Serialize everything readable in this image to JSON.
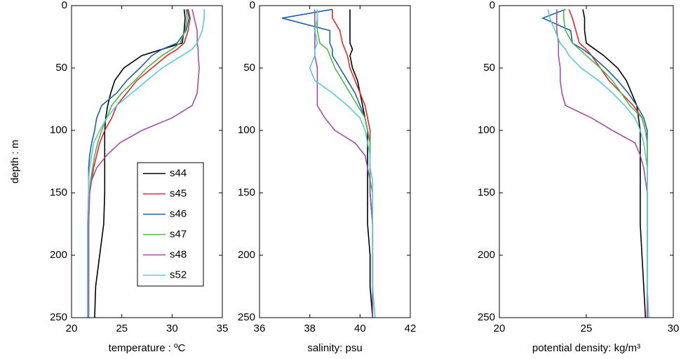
{
  "chart_data": [
    {
      "type": "line",
      "xlabel": "temperature : ºC",
      "ylabel": "depth : m",
      "xlim": [
        20,
        35
      ],
      "xticks": [
        20,
        25,
        30,
        35
      ],
      "ylim": [
        0,
        250
      ],
      "yticks": [
        0,
        50,
        100,
        150,
        200,
        250
      ],
      "yreverse": true,
      "legend": "lower right",
      "y": [
        3,
        10,
        20,
        30,
        35,
        40,
        50,
        60,
        70,
        80,
        90,
        100,
        110,
        120,
        130,
        140,
        150,
        175,
        200,
        225,
        250
      ],
      "series": [
        {
          "name": "s44",
          "color": "#000000",
          "values": [
            31.2,
            31.3,
            31.2,
            31,
            29,
            27,
            25.2,
            24.3,
            23.9,
            23.6,
            23.4,
            23.3,
            23.3,
            23.3,
            23.3,
            23.3,
            23.3,
            23.2,
            22.8,
            22.4,
            22.3
          ]
        },
        {
          "name": "s45",
          "color": "#e8262a",
          "values": [
            31.6,
            31.8,
            31.6,
            31.2,
            30.5,
            29.5,
            28,
            26.5,
            25.5,
            24.5,
            24,
            23.3,
            22.8,
            22.5,
            22.2,
            22,
            21.8,
            21.7,
            21.7,
            21.7,
            21.7
          ]
        },
        {
          "name": "s46",
          "color": "#1f5fa8",
          "values": [
            31.5,
            31.7,
            31.4,
            30.5,
            29,
            28,
            26.8,
            25.5,
            24.5,
            23,
            22.5,
            22.3,
            22,
            21.8,
            21.7,
            21.7,
            21.7,
            21.6,
            21.6,
            21.6,
            21.6
          ]
        },
        {
          "name": "s47",
          "color": "#4cb848",
          "values": [
            31.4,
            31.5,
            31.3,
            30.8,
            30,
            29,
            27.5,
            26.3,
            25,
            24,
            23.5,
            23,
            22.6,
            22.3,
            22.1,
            21.9,
            21.8,
            21.7,
            21.7,
            21.7,
            21.7
          ]
        },
        {
          "name": "s48",
          "color": "#a34fa6",
          "values": [
            32,
            32.2,
            32.5,
            32.5,
            32.6,
            32.6,
            32.7,
            32.6,
            32.5,
            32,
            30,
            27,
            24.8,
            23.5,
            22.5,
            22,
            21.8,
            21.7,
            21.7,
            21.7,
            21.7
          ]
        },
        {
          "name": "s52",
          "color": "#5bc8d8",
          "values": [
            33.2,
            33.2,
            33,
            32.5,
            32,
            31,
            29,
            27.5,
            26,
            24.5,
            23.5,
            22.8,
            22.2,
            22,
            21.8,
            21.7,
            21.7,
            21.6,
            21.6,
            21.6,
            21.6
          ]
        }
      ]
    },
    {
      "type": "line",
      "xlabel": "salinity: psu",
      "xlim": [
        36,
        42
      ],
      "xticks": [
        36,
        38,
        40,
        42
      ],
      "ylim": [
        0,
        250
      ],
      "yticks": [
        0,
        50,
        100,
        150,
        200,
        250
      ],
      "yreverse": true,
      "y": [
        3,
        10,
        20,
        30,
        35,
        40,
        50,
        60,
        70,
        80,
        90,
        100,
        110,
        120,
        130,
        140,
        150,
        175,
        200,
        225,
        250
      ],
      "series": [
        {
          "color": "#000000",
          "values": [
            39.6,
            39.6,
            39.6,
            39.6,
            39.7,
            39.6,
            39.7,
            39.9,
            40.0,
            40.1,
            40.2,
            40.3,
            40.3,
            40.3,
            40.3,
            40.3,
            40.3,
            40.3,
            40.4,
            40.4,
            40.5
          ]
        },
        {
          "color": "#e8262a",
          "values": [
            38.9,
            38.9,
            39.2,
            39.3,
            39.4,
            39.5,
            39.6,
            39.8,
            40.0,
            40.2,
            40.3,
            40.4,
            40.4,
            40.4,
            40.4,
            40.4,
            40.4,
            40.5,
            40.5,
            40.5,
            40.5
          ]
        },
        {
          "color": "#1f5fa8",
          "values": [
            38.9,
            36.9,
            38.8,
            38.8,
            38.9,
            38.9,
            39.2,
            39.5,
            39.8,
            40.0,
            40.2,
            40.3,
            40.4,
            40.4,
            40.4,
            40.4,
            40.4,
            40.5,
            40.5,
            40.5,
            40.5
          ]
        },
        {
          "color": "#4cb848",
          "values": [
            38.3,
            38.3,
            38.3,
            38.4,
            38.7,
            38.8,
            39.0,
            39.3,
            39.6,
            39.9,
            40.2,
            40.3,
            40.4,
            40.4,
            40.4,
            40.4,
            40.5,
            40.5,
            40.5,
            40.5,
            40.5
          ]
        },
        {
          "color": "#a34fa6",
          "values": [
            38.2,
            38.2,
            38.2,
            38.2,
            38.2,
            38.2,
            38.3,
            38.3,
            38.3,
            38.3,
            38.6,
            39.0,
            39.8,
            40.2,
            40.3,
            40.4,
            40.4,
            40.5,
            40.5,
            40.5,
            40.5
          ]
        },
        {
          "color": "#5bc8d8",
          "values": [
            38.3,
            38.3,
            38.2,
            38.3,
            38.2,
            38.2,
            38.0,
            38.2,
            38.9,
            39.5,
            40.0,
            40.2,
            40.3,
            40.4,
            40.4,
            40.5,
            40.5,
            40.5,
            40.5,
            40.5,
            40.6
          ]
        }
      ]
    },
    {
      "type": "line",
      "xlabel": "potential density: kg/m³",
      "xlim": [
        20,
        30
      ],
      "xticks": [
        20,
        25,
        30
      ],
      "ylim": [
        0,
        250
      ],
      "yticks": [
        0,
        50,
        100,
        150,
        200,
        250
      ],
      "yreverse": true,
      "y": [
        3,
        10,
        20,
        30,
        35,
        40,
        50,
        60,
        70,
        80,
        90,
        100,
        110,
        120,
        130,
        140,
        150,
        175,
        200,
        225,
        250
      ],
      "series": [
        {
          "color": "#000000",
          "values": [
            24.8,
            24.9,
            24.9,
            25.0,
            25.5,
            26.0,
            26.8,
            27.3,
            27.6,
            27.9,
            28.0,
            28.1,
            28.1,
            28.1,
            28.1,
            28.1,
            28.1,
            28.1,
            28.2,
            28.3,
            28.4
          ]
        },
        {
          "color": "#e8262a",
          "values": [
            24.0,
            24.2,
            24.4,
            24.6,
            25.0,
            25.3,
            25.8,
            26.3,
            27.0,
            27.7,
            28.2,
            28.4,
            28.5,
            28.5,
            28.5,
            28.5,
            28.5,
            28.5,
            28.5,
            28.5,
            28.5
          ]
        },
        {
          "color": "#1f5fa8",
          "values": [
            23.8,
            22.5,
            24.1,
            24.2,
            24.8,
            25.3,
            26.1,
            26.8,
            27.4,
            27.9,
            28.3,
            28.5,
            28.5,
            28.5,
            28.5,
            28.5,
            28.5,
            28.5,
            28.5,
            28.5,
            28.5
          ]
        },
        {
          "color": "#4cb848",
          "values": [
            23.7,
            23.7,
            23.8,
            24.2,
            24.6,
            25.0,
            25.8,
            26.5,
            27.0,
            27.5,
            28.2,
            28.4,
            28.5,
            28.5,
            28.5,
            28.5,
            28.5,
            28.5,
            28.5,
            28.5,
            28.5
          ]
        },
        {
          "color": "#a34fa6",
          "values": [
            23.3,
            23.3,
            23.3,
            23.4,
            23.4,
            23.4,
            23.5,
            23.5,
            23.6,
            23.8,
            25.3,
            26.5,
            27.8,
            28.1,
            28.3,
            28.4,
            28.5,
            28.5,
            28.5,
            28.5,
            28.5
          ]
        },
        {
          "color": "#5bc8d8",
          "values": [
            22.8,
            22.9,
            23.2,
            23.5,
            23.8,
            24.0,
            24.7,
            25.7,
            26.5,
            27.2,
            27.8,
            28.1,
            28.3,
            28.4,
            28.5,
            28.5,
            28.5,
            28.5,
            28.5,
            28.5,
            28.6
          ]
        }
      ]
    }
  ]
}
